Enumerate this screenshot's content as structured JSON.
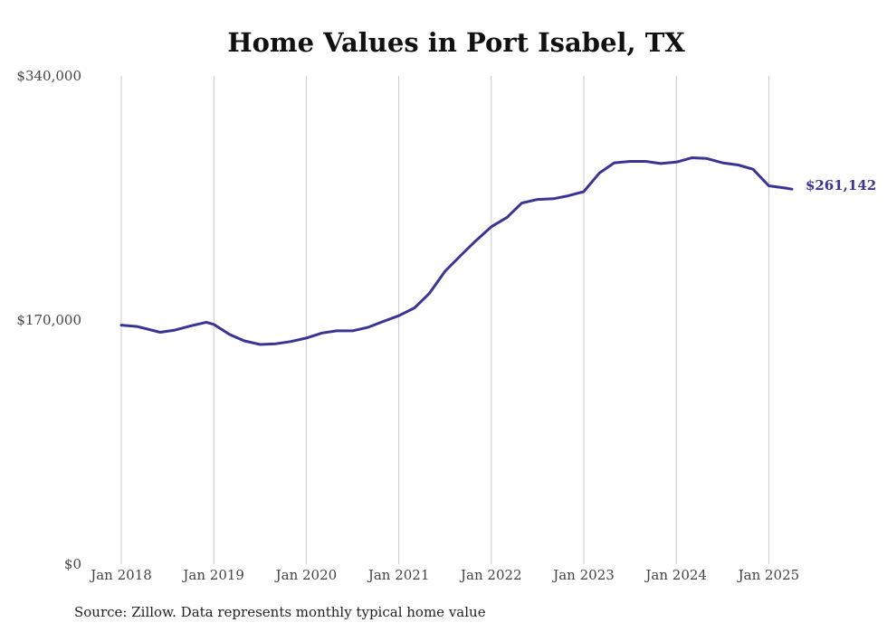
{
  "chart_data": {
    "type": "line",
    "title": "Home Values in Port Isabel, TX",
    "source": "Source: Zillow. Data represents monthly typical home value",
    "ylim": [
      0,
      340000
    ],
    "y_ticks": [
      {
        "value": 0,
        "label": "$0"
      },
      {
        "value": 170000,
        "label": "$170,000"
      },
      {
        "value": 340000,
        "label": "$340,000"
      }
    ],
    "x_ticks": [
      {
        "value": 2018.0,
        "label": "Jan 2018"
      },
      {
        "value": 2019.0,
        "label": "Jan 2019"
      },
      {
        "value": 2020.0,
        "label": "Jan 2020"
      },
      {
        "value": 2021.0,
        "label": "Jan 2021"
      },
      {
        "value": 2022.0,
        "label": "Jan 2022"
      },
      {
        "value": 2023.0,
        "label": "Jan 2023"
      },
      {
        "value": 2024.0,
        "label": "Jan 2024"
      },
      {
        "value": 2025.0,
        "label": "Jan 2025"
      }
    ],
    "xlim": [
      2018.0,
      2025.33
    ],
    "grid": "vertical",
    "line_color": "#3a3494",
    "end_label": "$261,142",
    "series": [
      {
        "points": [
          [
            2018.0,
            166500
          ],
          [
            2018.17,
            165500
          ],
          [
            2018.42,
            161500
          ],
          [
            2018.58,
            163000
          ],
          [
            2018.75,
            166000
          ],
          [
            2018.92,
            168500
          ],
          [
            2019.0,
            167000
          ],
          [
            2019.17,
            160000
          ],
          [
            2019.33,
            155500
          ],
          [
            2019.5,
            153000
          ],
          [
            2019.67,
            153500
          ],
          [
            2019.83,
            155000
          ],
          [
            2020.0,
            157500
          ],
          [
            2020.17,
            161000
          ],
          [
            2020.33,
            162500
          ],
          [
            2020.5,
            162500
          ],
          [
            2020.67,
            165000
          ],
          [
            2020.83,
            169000
          ],
          [
            2021.0,
            173000
          ],
          [
            2021.17,
            178500
          ],
          [
            2021.33,
            188500
          ],
          [
            2021.5,
            204000
          ],
          [
            2021.67,
            215000
          ],
          [
            2021.83,
            225000
          ],
          [
            2022.0,
            235000
          ],
          [
            2022.17,
            241500
          ],
          [
            2022.33,
            251500
          ],
          [
            2022.5,
            254000
          ],
          [
            2022.67,
            254500
          ],
          [
            2022.83,
            256500
          ],
          [
            2023.0,
            259500
          ],
          [
            2023.17,
            272500
          ],
          [
            2023.33,
            279500
          ],
          [
            2023.5,
            280500
          ],
          [
            2023.67,
            280500
          ],
          [
            2023.83,
            279000
          ],
          [
            2024.0,
            280000
          ],
          [
            2024.17,
            283000
          ],
          [
            2024.33,
            282500
          ],
          [
            2024.5,
            279500
          ],
          [
            2024.67,
            278000
          ],
          [
            2024.83,
            275000
          ],
          [
            2025.0,
            263500
          ],
          [
            2025.17,
            262000
          ],
          [
            2025.25,
            261142
          ]
        ]
      }
    ]
  }
}
